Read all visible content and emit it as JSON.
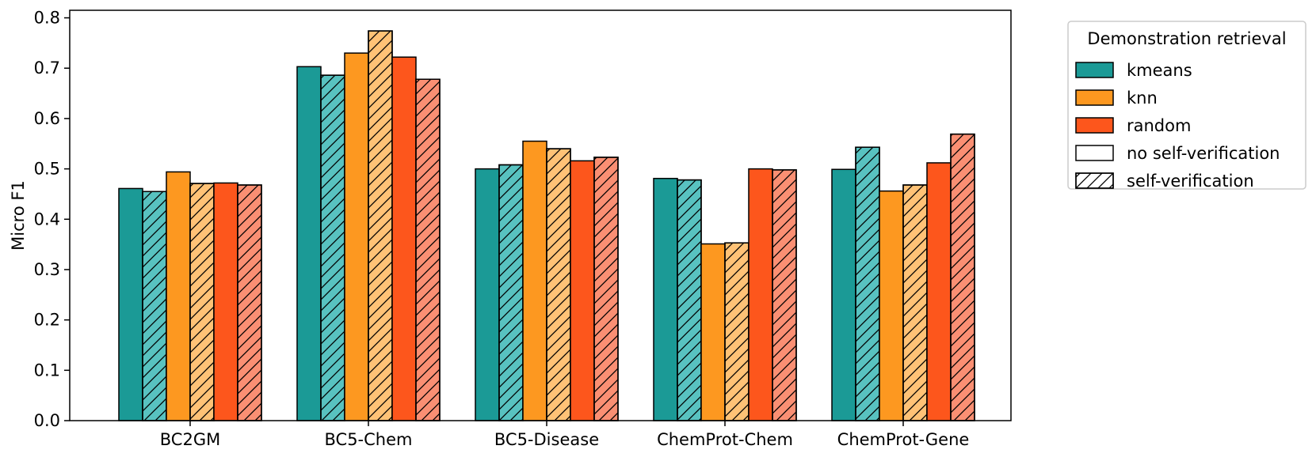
{
  "chart_data": {
    "type": "bar",
    "title": "",
    "xlabel": "",
    "ylabel": "Micro F1",
    "ylim": [
      0,
      0.815
    ],
    "yticks": [
      0.0,
      0.1,
      0.2,
      0.3,
      0.4,
      0.5,
      0.6,
      0.7,
      0.8
    ],
    "ytick_labels": [
      "0.0",
      "0.1",
      "0.2",
      "0.3",
      "0.4",
      "0.5",
      "0.6",
      "0.7",
      "0.8"
    ],
    "grid": false,
    "categories": [
      "BC2GM",
      "BC5-Chem",
      "BC5-Disease",
      "ChemProt-Chem",
      "ChemProt-Gene"
    ],
    "series": [
      {
        "name": "kmeans / no self-verification",
        "retrieval": "kmeans",
        "verification": "no self-verification",
        "color": "#1b9a96",
        "hatched": false,
        "values": [
          0.461,
          0.703,
          0.5,
          0.481,
          0.499
        ]
      },
      {
        "name": "kmeans / self-verification",
        "retrieval": "kmeans",
        "verification": "self-verification",
        "color": "#58c2c0",
        "hatched": true,
        "values": [
          0.455,
          0.686,
          0.508,
          0.478,
          0.543
        ]
      },
      {
        "name": "knn / no self-verification",
        "retrieval": "knn",
        "verification": "no self-verification",
        "color": "#fd9820",
        "hatched": false,
        "values": [
          0.494,
          0.73,
          0.555,
          0.351,
          0.456
        ]
      },
      {
        "name": "knn / self-verification",
        "retrieval": "knn",
        "verification": "self-verification",
        "color": "#ffc276",
        "hatched": true,
        "values": [
          0.471,
          0.774,
          0.54,
          0.353,
          0.468
        ]
      },
      {
        "name": "random / no self-verification",
        "retrieval": "random",
        "verification": "no self-verification",
        "color": "#fd561c",
        "hatched": false,
        "values": [
          0.472,
          0.722,
          0.516,
          0.5,
          0.512
        ]
      },
      {
        "name": "random / self-verification",
        "retrieval": "random",
        "verification": "self-verification",
        "color": "#fa8f73",
        "hatched": true,
        "values": [
          0.468,
          0.678,
          0.523,
          0.498,
          0.569
        ]
      }
    ],
    "legend": {
      "title": "Demonstration retrieval",
      "placement": "outside-right",
      "entries": [
        {
          "label": "kmeans",
          "color": "#1b9a96",
          "hatched": false
        },
        {
          "label": "knn",
          "color": "#fd9820",
          "hatched": false
        },
        {
          "label": "random",
          "color": "#fd561c",
          "hatched": false
        },
        {
          "label": "no self-verification",
          "color": "#ffffff",
          "hatched": false
        },
        {
          "label": "self-verification",
          "color": "#ffffff",
          "hatched": true
        }
      ]
    }
  }
}
